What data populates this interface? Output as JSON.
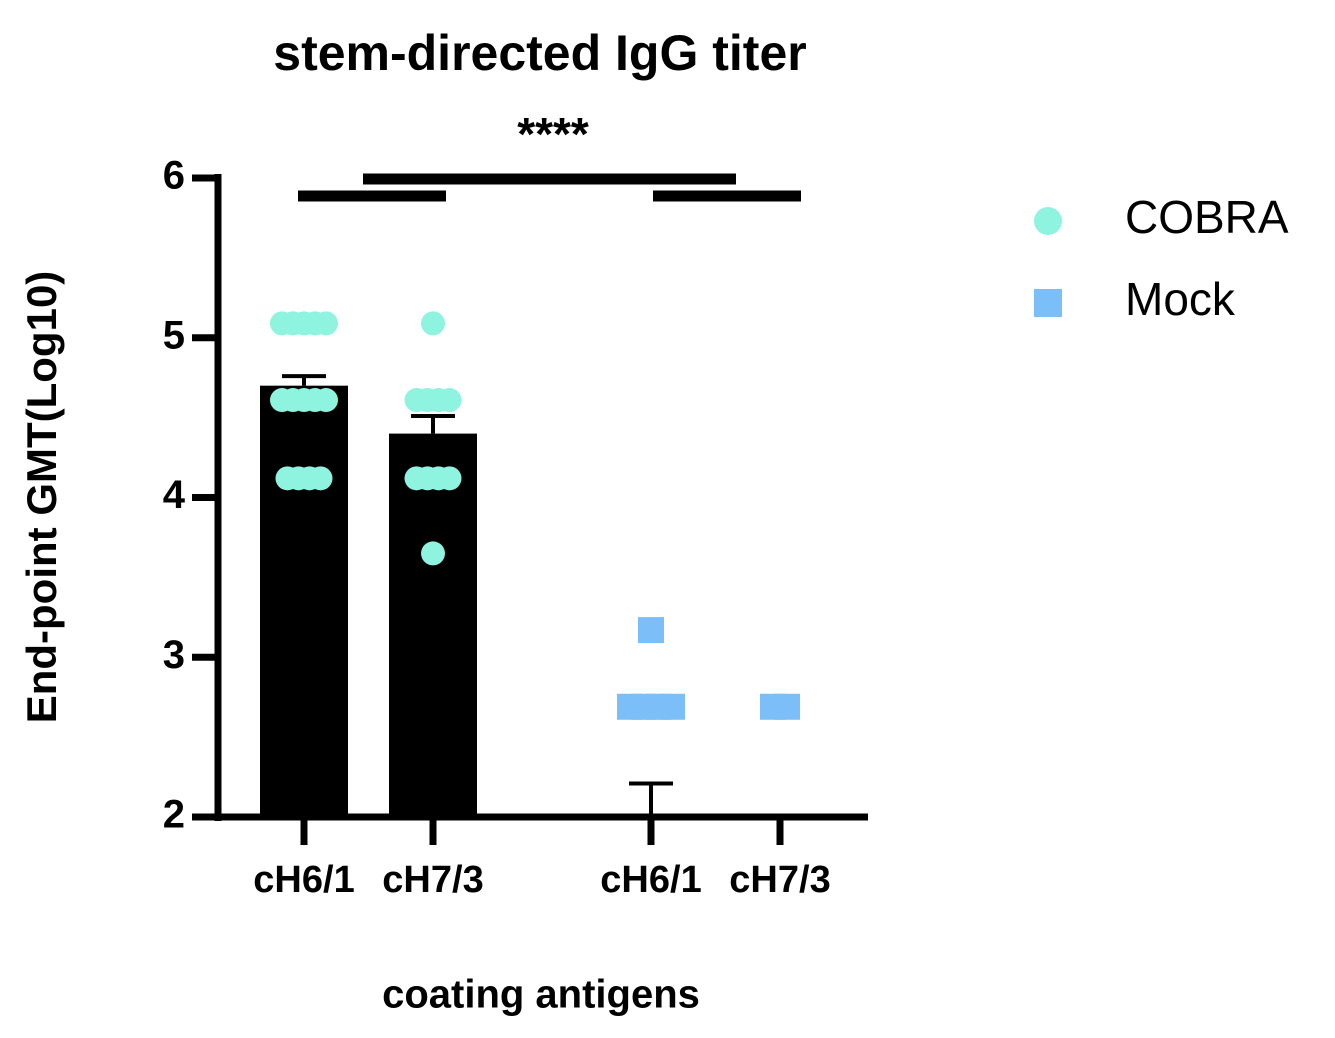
{
  "chart_data": {
    "type": "bar",
    "title": "stem-directed IgG titer",
    "xlabel": "coating antigens",
    "ylabel": "End-point GMT(Log10)",
    "annotation": "****",
    "categories": [
      "cH6/1",
      "cH7/3",
      "cH6/1",
      "cH7/3"
    ],
    "ylim": [
      2,
      6
    ],
    "yticks": [
      2,
      3,
      4,
      5,
      6
    ],
    "bar_color": "#000000",
    "series": [
      {
        "name": "COBRA",
        "color": "#8ef3df",
        "marker": "circle",
        "means": [
          4.7,
          4.4,
          null,
          null
        ],
        "error_upper": [
          4.76,
          4.51,
          null,
          null
        ],
        "points": [
          [
            5.09,
            5.09,
            5.09,
            5.09,
            5.09,
            4.61,
            4.61,
            4.61,
            4.61,
            4.61,
            4.12,
            4.12,
            4.12,
            4.12
          ],
          [
            5.09,
            4.61,
            4.61,
            4.61,
            4.61,
            4.12,
            4.12,
            4.12,
            4.12,
            3.65
          ],
          [],
          []
        ]
      },
      {
        "name": "Mock",
        "color": "#7cbff8",
        "marker": "square",
        "means": [
          null,
          null,
          null,
          null
        ],
        "error_upper": [
          null,
          null,
          2.21,
          null
        ],
        "points": [
          [],
          [],
          [
            3.17,
            2.69,
            2.69,
            2.69,
            2.69
          ],
          [
            2.69,
            2.69
          ]
        ]
      }
    ]
  }
}
